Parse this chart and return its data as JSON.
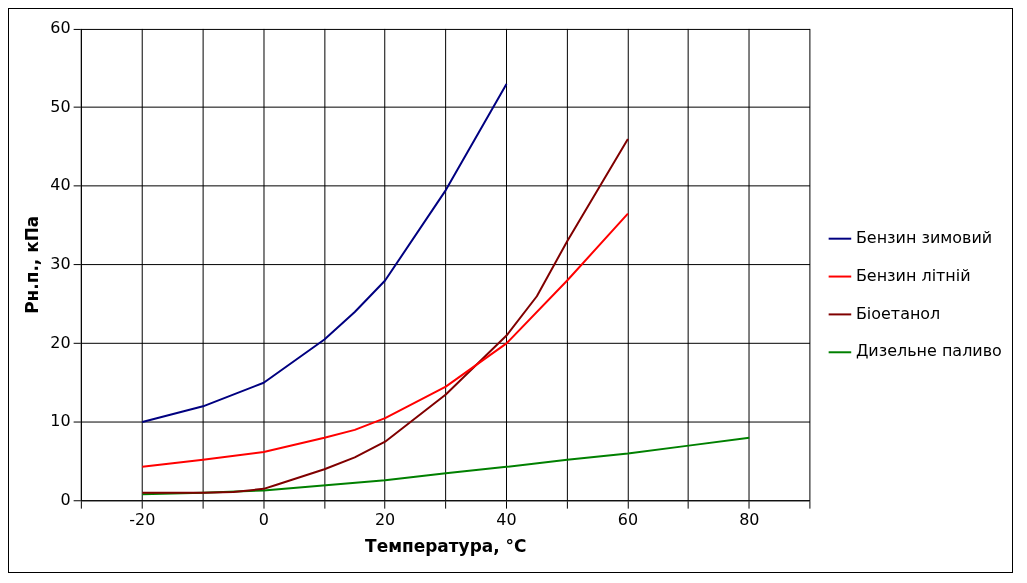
{
  "chart_data": {
    "type": "line",
    "xlabel": "Температура, °C",
    "ylabel": "Рн.п., кПа",
    "xlim": [
      -30,
      90
    ],
    "xticks": [
      {
        "value": -30,
        "label": null
      },
      -20,
      {
        "value": -10,
        "label": null
      },
      0,
      {
        "value": 10,
        "label": null
      },
      20,
      {
        "value": 30,
        "label": null
      },
      40,
      {
        "value": 50,
        "label": null
      },
      60,
      {
        "value": 70,
        "label": null
      },
      80,
      {
        "value": 90,
        "label": null
      }
    ],
    "ylim": [
      0,
      60
    ],
    "yticks": [
      0,
      10,
      20,
      30,
      40,
      50,
      60
    ],
    "grid": true,
    "legend": "right",
    "marker": "none",
    "line_style": "solid",
    "series": [
      {
        "name": "Бензин зимовий",
        "color": "#000080",
        "x": [
          -20,
          -10,
          0,
          10,
          15,
          20,
          30,
          40
        ],
        "values": [
          10,
          12,
          15,
          20.5,
          24,
          28,
          39.5,
          53
        ]
      },
      {
        "name": "Бензин літній",
        "color": "#ff0000",
        "x": [
          -20,
          -10,
          0,
          10,
          15,
          20,
          30,
          40,
          50,
          60
        ],
        "values": [
          4.3,
          5.2,
          6.2,
          8,
          9,
          10.5,
          14.5,
          20,
          28,
          36.5
        ]
      },
      {
        "name": "Біоетанол",
        "color": "#800000",
        "x": [
          -20,
          -10,
          -5,
          0,
          2,
          10,
          15,
          20,
          30,
          40,
          45,
          50,
          60
        ],
        "values": [
          1,
          1,
          1.1,
          1.5,
          2,
          4,
          5.5,
          7.5,
          13.5,
          21,
          26,
          33,
          46
        ]
      },
      {
        "name": "Дизельне паливо",
        "color": "#008000",
        "x": [
          -20,
          -10,
          0,
          20,
          30,
          40,
          50,
          60,
          70,
          80
        ],
        "values": [
          0.8,
          1,
          1.3,
          2.6,
          3.5,
          4.3,
          5.2,
          6,
          7,
          8
        ]
      }
    ]
  }
}
